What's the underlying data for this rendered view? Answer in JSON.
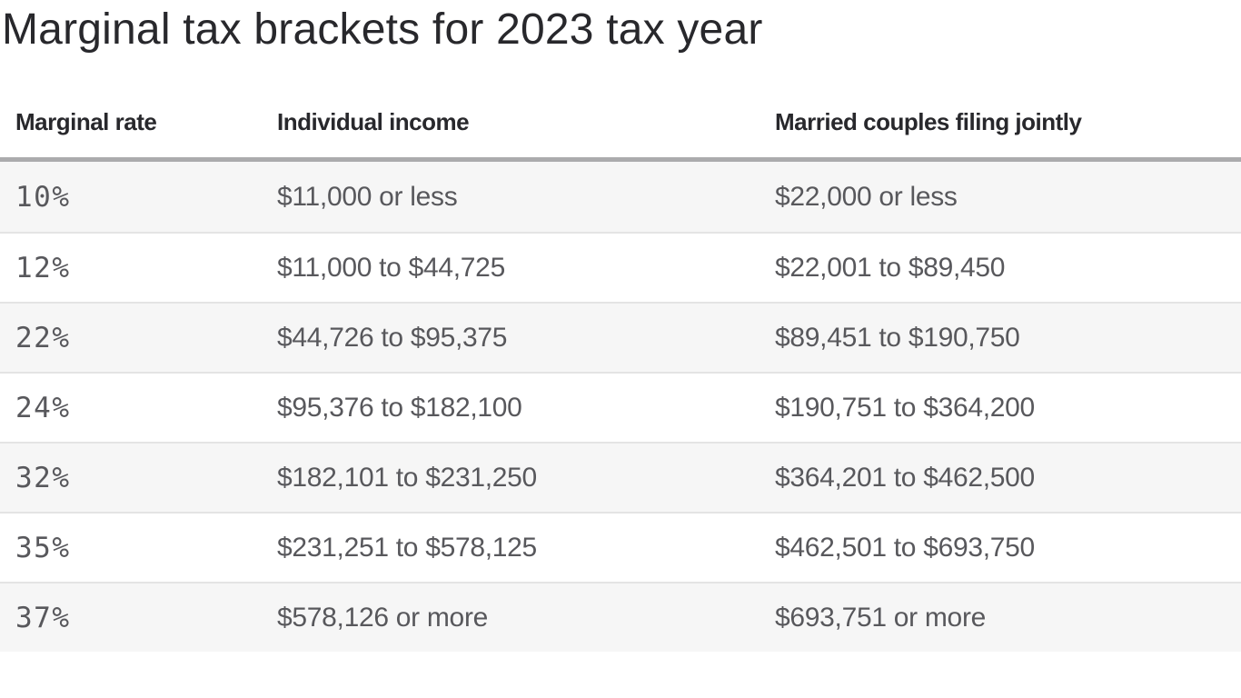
{
  "title": "Marginal tax brackets for 2023 tax year",
  "table": {
    "headers": {
      "rate": "Marginal rate",
      "individual": "Individual income",
      "married": "Married couples filing jointly"
    },
    "rows": [
      {
        "rate": "10%",
        "individual": "$11,000 or less",
        "married": "$22,000 or less"
      },
      {
        "rate": "12%",
        "individual": "$11,000 to $44,725",
        "married": "$22,001 to $89,450"
      },
      {
        "rate": "22%",
        "individual": "$44,726 to $95,375",
        "married": "$89,451 to $190,750"
      },
      {
        "rate": "24%",
        "individual": "$95,376 to $182,100",
        "married": "$190,751 to $364,200"
      },
      {
        "rate": "32%",
        "individual": "$182,101 to $231,250",
        "married": "$364,201 to $462,500"
      },
      {
        "rate": "35%",
        "individual": "$231,251 to $578,125",
        "married": "$462,501 to $693,750"
      },
      {
        "rate": "37%",
        "individual": "$578,126 or more",
        "married": "$693,751 or more"
      }
    ]
  },
  "colors": {
    "title_text": "#28282c",
    "header_text": "#28282c",
    "body_text": "#58585c",
    "header_rule": "#ababad",
    "row_separator": "#e4e4e4",
    "stripe_row_bg": "#f6f6f6",
    "page_bg": "#ffffff"
  },
  "chart_data": {
    "type": "table",
    "title": "Marginal tax brackets for 2023 tax year",
    "columns": [
      "Marginal rate",
      "Individual income",
      "Married couples filing jointly"
    ],
    "rows": [
      [
        "10%",
        "$11,000 or less",
        "$22,000 or less"
      ],
      [
        "12%",
        "$11,000 to $44,725",
        "$22,001 to $89,450"
      ],
      [
        "22%",
        "$44,726 to $95,375",
        "$89,451 to $190,750"
      ],
      [
        "24%",
        "$95,376 to $182,100",
        "$190,751 to $364,200"
      ],
      [
        "32%",
        "$182,101 to $231,250",
        "$364,201 to $462,500"
      ],
      [
        "35%",
        "$231,251 to $578,125",
        "$462,501 to $693,750"
      ],
      [
        "37%",
        "$578,126 or more",
        "$693,751 or more"
      ]
    ],
    "layout": {
      "striped_rows": "even rows shaded light gray",
      "header_rule": "thick gray line under header",
      "alignment": "left"
    }
  }
}
